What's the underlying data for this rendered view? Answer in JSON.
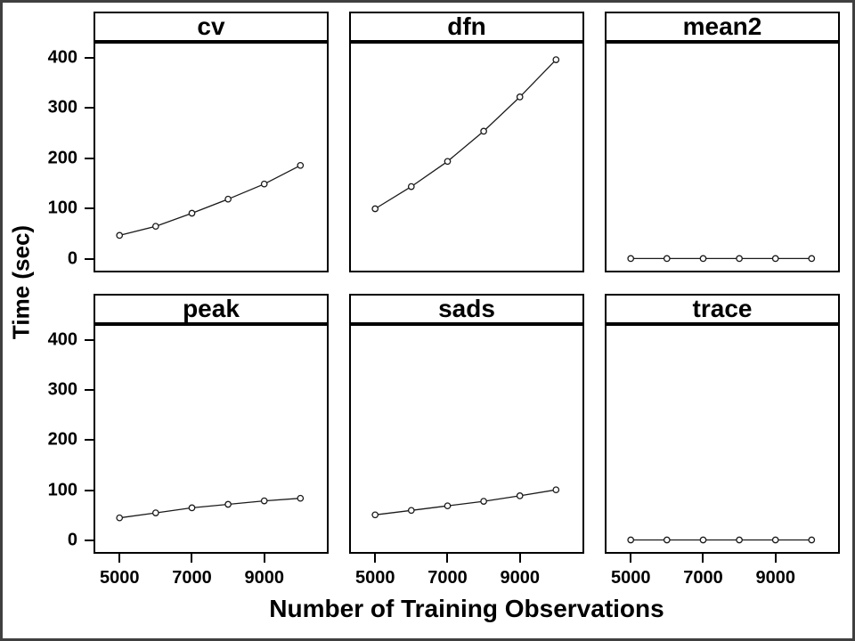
{
  "figure": {
    "background": "#ffffff",
    "outer_border_color": "#404040",
    "panel_border_color": "#000000",
    "line_color": "#1a1a1a",
    "marker": "open-circle",
    "marker_fill": "#ffffff"
  },
  "chart_data": {
    "type": "line",
    "layout": "trellis 2 rows x 3 columns",
    "xlabel": "Number of Training Observations",
    "ylabel": "Time (sec)",
    "x": [
      5000,
      6000,
      7000,
      8000,
      9000,
      10000
    ],
    "x_ticks": [
      5000,
      7000,
      9000
    ],
    "y_ticks": [
      0,
      100,
      200,
      300,
      400
    ],
    "x_range": [
      4330,
      10730
    ],
    "y_range": [
      -23,
      428
    ],
    "grid": "off",
    "legend_position": "none",
    "panels": [
      {
        "label": "cv",
        "values": [
          47,
          65,
          91,
          119,
          149,
          186
        ]
      },
      {
        "label": "dfn",
        "values": [
          100,
          144,
          194,
          254,
          322,
          396
        ]
      },
      {
        "label": "mean2",
        "values": [
          1,
          1,
          1,
          1,
          1,
          1
        ]
      },
      {
        "label": "peak",
        "values": [
          45,
          55,
          65,
          72,
          79,
          84
        ]
      },
      {
        "label": "sads",
        "values": [
          51,
          60,
          69,
          78,
          89,
          101
        ]
      },
      {
        "label": "trace",
        "values": [
          1,
          1,
          1,
          1,
          1,
          1
        ]
      }
    ]
  }
}
